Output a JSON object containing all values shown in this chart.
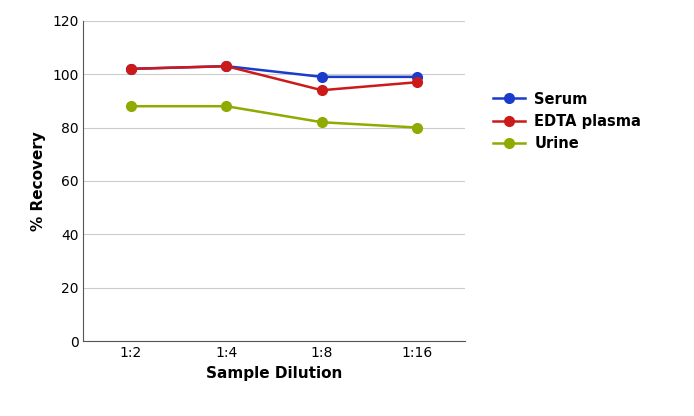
{
  "x_labels": [
    "1:2",
    "1:4",
    "1:8",
    "1:16"
  ],
  "x_positions": [
    0,
    1,
    2,
    3
  ],
  "serum": [
    102,
    103,
    99,
    99
  ],
  "edta_plasma": [
    102,
    103,
    94,
    97
  ],
  "urine": [
    88,
    88,
    82,
    80
  ],
  "serum_color": "#1a3bcc",
  "edta_color": "#cc1a1a",
  "urine_color": "#8faa00",
  "ylabel": "% Recovery",
  "xlabel": "Sample Dilution",
  "ylim": [
    0,
    120
  ],
  "yticks": [
    0,
    20,
    40,
    60,
    80,
    100,
    120
  ],
  "legend_labels": [
    "Serum",
    "EDTA plasma",
    "Urine"
  ],
  "marker": "o",
  "linewidth": 1.8,
  "markersize": 7,
  "label_fontsize": 11,
  "tick_fontsize": 10,
  "legend_fontsize": 10.5
}
